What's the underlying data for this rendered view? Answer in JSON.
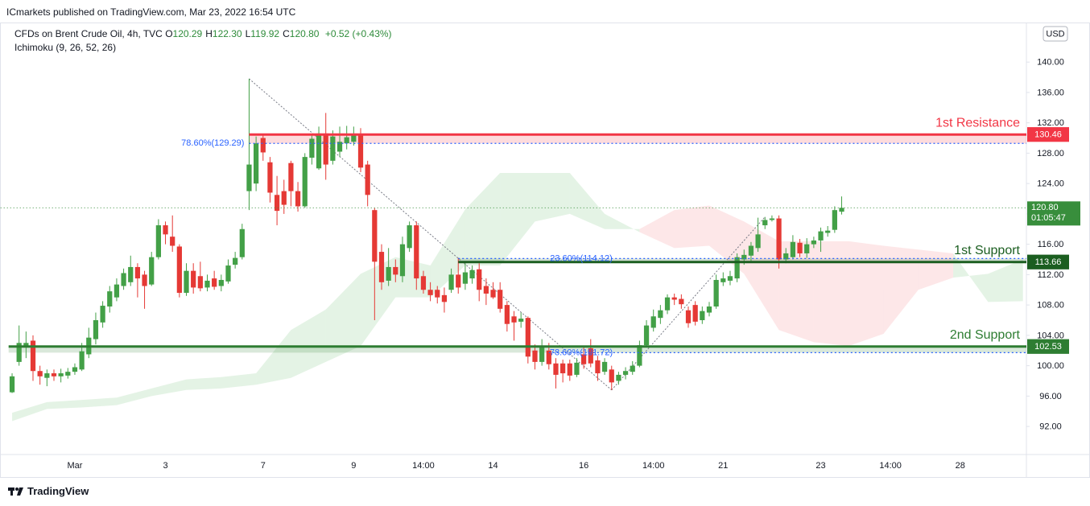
{
  "header": {
    "published": "ICmarkets published on TradingView.com, Mar 23, 2022 16:54 UTC",
    "symbol": "CFDs on Brent Crude Oil, 4h, TVC",
    "ohlc": [
      {
        "key": "O",
        "value": "120.29"
      },
      {
        "key": "H",
        "value": "122.30"
      },
      {
        "key": "L",
        "value": "119.92"
      },
      {
        "key": "C",
        "value": "120.80"
      }
    ],
    "change": "+0.52 (+0.43%)",
    "indicator": "Ichimoku (9, 26, 52, 26)",
    "currency": "USD"
  },
  "chart_data": {
    "type": "candlestick",
    "categories": [
      null,
      null,
      null,
      null,
      null,
      null,
      null,
      null,
      null,
      "Mar",
      null,
      null,
      null,
      null,
      null,
      null,
      null,
      null,
      null,
      null,
      null,
      null,
      "3",
      null,
      null,
      null,
      null,
      null,
      null,
      null,
      null,
      null,
      null,
      null,
      null,
      null,
      "7",
      null,
      null,
      null,
      null,
      null,
      null,
      null,
      null,
      null,
      null,
      null,
      null,
      "9",
      null,
      null,
      null,
      null,
      null,
      null,
      null,
      null,
      null,
      "14:00",
      null,
      null,
      null,
      null,
      null,
      null,
      null,
      null,
      null,
      "14",
      null,
      null,
      null,
      null,
      null,
      null,
      null,
      null,
      null,
      null,
      null,
      null,
      "16",
      null,
      null,
      null,
      null,
      null,
      null,
      null,
      null,
      null,
      "14:00",
      null,
      null,
      null,
      null,
      null,
      null,
      null,
      null,
      null,
      "21",
      null,
      null,
      null,
      null,
      null,
      null,
      null,
      null,
      null,
      null,
      null,
      null,
      null,
      "23",
      null,
      null,
      null,
      null,
      null,
      null,
      null,
      null,
      null,
      "14:00",
      null,
      null,
      null,
      null,
      null,
      null,
      null,
      null,
      null,
      "28",
      null,
      null,
      null,
      null,
      null,
      null,
      null,
      null,
      null
    ],
    "open": [
      96.5,
      100.5,
      102.5,
      103.3,
      99.3,
      98.4,
      99,
      98.6,
      98.7,
      99.2,
      99.5,
      101.5,
      103.5,
      105.7,
      107.8,
      109,
      110.5,
      111,
      113,
      112,
      110.7,
      114.3,
      118.5,
      117,
      115.7,
      109.6,
      112.5,
      111.8,
      110.3,
      111.5,
      110.5,
      111.1,
      113.3,
      114.3,
      123,
      124,
      130,
      126.8,
      122.5,
      123,
      126.7,
      123,
      121,
      127.4,
      126,
      130.6,
      127,
      128.2,
      129.3,
      129.5,
      130.5,
      126.5,
      120.5,
      115,
      111.2,
      113,
      111.8,
      115.5,
      118.5,
      111.8,
      110,
      110,
      109.3,
      110,
      112,
      110.8,
      111.5,
      112.7,
      110.5,
      110,
      110,
      108,
      106.5,
      105.8,
      106.3,
      102,
      100.5,
      102,
      100.3,
      100.3,
      100.3,
      98.8,
      101.5,
      102.3,
      100.7,
      99.2,
      99.5,
      98,
      98.8,
      99.2,
      100,
      102.7,
      105,
      106.3,
      107.3,
      109,
      108.8,
      107.3,
      108,
      106,
      107,
      107.8,
      111,
      111.2,
      111.5,
      114,
      114.5,
      115.5,
      118.5,
      119.2,
      119.4,
      114,
      114.3,
      116.2,
      114.8,
      116,
      116.5,
      117.5,
      117.9,
      120.29,
      null,
      null,
      null,
      null,
      null,
      null,
      null,
      null,
      null,
      null,
      null,
      null,
      null,
      null,
      null,
      null,
      null,
      null,
      null,
      null,
      null,
      null,
      null,
      null,
      null,
      null
    ],
    "high": [
      99,
      105.3,
      104.5,
      104,
      100,
      99.5,
      99.5,
      99.6,
      99.7,
      100.3,
      103,
      105,
      107,
      108.5,
      110.5,
      111.5,
      112.8,
      114.5,
      113.5,
      112.5,
      115,
      119.3,
      119,
      119.8,
      116,
      113.5,
      113.5,
      113.7,
      112,
      112.5,
      112,
      114,
      115,
      118.7,
      137.8,
      130.2,
      130.5,
      127.5,
      125,
      124.5,
      127,
      124.2,
      128,
      130.5,
      131.5,
      133.3,
      131,
      131.5,
      131.6,
      131.5,
      131.3,
      127,
      120.8,
      116,
      115.5,
      114,
      117,
      119,
      119,
      112.5,
      111,
      110.5,
      110.3,
      112.8,
      114.2,
      113.5,
      113.2,
      113.5,
      111.5,
      111,
      111,
      108.5,
      107.2,
      107,
      106.5,
      102.8,
      103.5,
      103,
      101,
      100.8,
      100.8,
      101,
      102.5,
      103.5,
      101.3,
      101,
      100,
      99.2,
      99.8,
      100.6,
      103.3,
      106,
      107.4,
      108,
      109.4,
      109.5,
      109.4,
      107.8,
      108.5,
      107.8,
      108.4,
      112,
      112.3,
      112.5,
      114.8,
      115.3,
      116.3,
      119.5,
      119.6,
      119.8,
      119.8,
      115.5,
      117.2,
      116.7,
      116.8,
      117,
      118.2,
      118.4,
      121,
      122.3,
      null,
      null,
      null,
      null,
      null,
      null,
      null,
      null,
      null,
      null,
      null,
      null,
      null,
      null,
      null,
      null,
      null,
      null,
      null,
      null,
      null,
      null,
      null,
      null,
      null,
      null
    ],
    "low": [
      96.4,
      100,
      101,
      98,
      97.5,
      97.3,
      98,
      97.8,
      98.3,
      98.8,
      99.3,
      101,
      102.8,
      105,
      107,
      108.5,
      110,
      110.5,
      109,
      107.5,
      110.5,
      114,
      116,
      115,
      109,
      109.2,
      109.5,
      109.8,
      109.8,
      110,
      109.8,
      110.8,
      112.8,
      114,
      120.5,
      123,
      127,
      121.5,
      118.5,
      120,
      121,
      120.3,
      120.8,
      126.5,
      125.8,
      124.5,
      126.5,
      127.5,
      128.5,
      129,
      125.5,
      121,
      106,
      110,
      110.5,
      111,
      111,
      115,
      110,
      109.5,
      108.5,
      108.2,
      107,
      109.6,
      109.5,
      110,
      110.8,
      108.5,
      108,
      108.8,
      107,
      104.5,
      103.3,
      105,
      100.3,
      99.5,
      100,
      99.5,
      97,
      97.8,
      98,
      98.5,
      99.6,
      99.8,
      98,
      98.8,
      96.8,
      97.5,
      98.2,
      98.8,
      99.8,
      102.5,
      104.5,
      105.5,
      106.8,
      108,
      107.5,
      105,
      105.3,
      105.5,
      106.5,
      107.5,
      110.5,
      110.6,
      111,
      113.3,
      113.8,
      115,
      118,
      119,
      112.8,
      113.5,
      114,
      114.3,
      114.2,
      115.5,
      115,
      117,
      117.5,
      119.92,
      null,
      null,
      null,
      null,
      null,
      null,
      null,
      null,
      null,
      null,
      null,
      null,
      null,
      null,
      null,
      null,
      null,
      null,
      null,
      null,
      null,
      null,
      null,
      null,
      null,
      null
    ],
    "close": [
      98.6,
      103,
      103,
      99.3,
      98.6,
      99,
      98.6,
      99,
      99.2,
      99.8,
      101.9,
      103.7,
      106,
      107.9,
      109.8,
      110.7,
      112.2,
      113,
      111.5,
      110.5,
      114.3,
      118.5,
      117.3,
      115.8,
      109.6,
      112.5,
      110.3,
      110.2,
      111.2,
      110.4,
      111.3,
      113.2,
      114.2,
      118,
      126.5,
      129.3,
      128.1,
      122.8,
      120.4,
      121.2,
      123,
      121,
      127.5,
      129.9,
      130.6,
      126.5,
      130.2,
      129.5,
      130.1,
      130.5,
      126.1,
      122.5,
      113.7,
      111,
      113,
      112,
      116,
      118.5,
      111.5,
      110,
      109.3,
      109,
      108.4,
      112,
      110.3,
      112.3,
      112.6,
      110,
      109.5,
      109,
      107.5,
      105.5,
      105.7,
      106.2,
      101.2,
      100.5,
      102.5,
      100.2,
      98.8,
      99,
      98.7,
      100.4,
      100.2,
      100.3,
      99,
      100.5,
      97.8,
      98.8,
      99.3,
      100,
      102.7,
      105.3,
      106.5,
      107.3,
      109,
      108.7,
      108.1,
      105.6,
      105.8,
      107.2,
      107.8,
      111.3,
      111.5,
      111.8,
      114.3,
      114.6,
      115.8,
      117.3,
      119.2,
      119.4,
      114,
      114.8,
      116.3,
      114.8,
      116,
      116.5,
      117.7,
      117.8,
      120.5,
      120.8,
      null,
      null,
      null,
      null,
      null,
      null,
      null,
      null,
      null,
      null,
      null,
      null,
      null,
      null,
      null,
      null,
      null,
      null,
      null,
      null,
      null,
      null,
      null,
      null,
      null,
      null
    ],
    "up_color": "#43a047",
    "down_color": "#e53935",
    "ylim": [
      88.3,
      145
    ],
    "yticks": [
      {
        "value": 92,
        "label": "92.00"
      },
      {
        "value": 96,
        "label": "96.00"
      },
      {
        "value": 100,
        "label": "100.00"
      },
      {
        "value": 104,
        "label": "104.00"
      },
      {
        "value": 108,
        "label": "108.00"
      },
      {
        "value": 112,
        "label": "112.00"
      },
      {
        "value": 116,
        "label": "116.00"
      },
      {
        "value": 120,
        "label": "120.00"
      },
      {
        "value": 124,
        "label": "124.00"
      },
      {
        "value": 128,
        "label": "128.00"
      },
      {
        "value": 132,
        "label": "132.00"
      },
      {
        "value": 136,
        "label": "136.00"
      },
      {
        "value": 140,
        "label": "140.00"
      }
    ],
    "ichimoku": {
      "up_color": "#4caf50",
      "down_color": "#f23645",
      "span_a": [
        93.8,
        95.2,
        95.5,
        95.8,
        97,
        98.2,
        98.5,
        99,
        104.7,
        107.4,
        112.1,
        114.3,
        113.2,
        120.6,
        125.4,
        125.4,
        125.4,
        120,
        117.6,
        115.5,
        115.8,
        112.1,
        104.7,
        103.1,
        102.6,
        104.2,
        110,
        111.6,
        112.1,
        114
      ],
      "span_b": [
        92.7,
        94.3,
        94.5,
        94.8,
        96,
        96.8,
        97,
        97.5,
        98.4,
        100.5,
        102.6,
        109,
        109,
        113.2,
        113.2,
        119,
        120,
        118,
        118,
        120.5,
        121.1,
        119,
        116.4,
        116.4,
        116.4,
        115.8,
        115.3,
        114.8,
        108.4,
        108.5
      ]
    },
    "levels": [
      {
        "name": "1st Resistance",
        "value": 130.46,
        "value_label": "130.46",
        "color": "#f23645",
        "fib_label": "78.60%(129.29)",
        "fib_value": 129.29
      },
      {
        "name": "1st Support",
        "value": 113.66,
        "value_label": "113.66",
        "color": "#1b5e20",
        "fib_label": "23.60%(114.12)",
        "fib_value": 114.12
      },
      {
        "name": "2nd Support",
        "value": 102.53,
        "value_label": "102.53",
        "color": "#2e7d32",
        "fib_label": "78.60%(101.72)",
        "fib_value": 101.72
      }
    ],
    "fib_color": "#2962ff",
    "last_price": {
      "value": 120.8,
      "label": "120.80",
      "countdown": "01:05:47",
      "color": "#388e3c"
    }
  },
  "footer": {
    "brand": "TradingView"
  }
}
